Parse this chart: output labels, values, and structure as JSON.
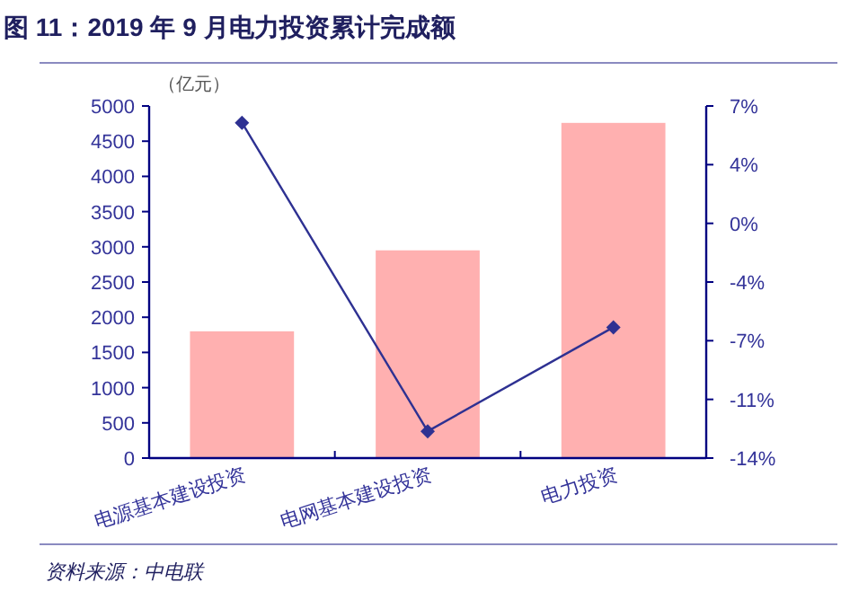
{
  "chart_data": {
    "type": "bar",
    "title": "图 11：2019 年 9 月电力投资累计完成额",
    "ylabel": "（亿元）",
    "categories": [
      "电源基本建设投资",
      "电网基本建设投资",
      "电力投资"
    ],
    "series": [
      {
        "color": "#ffb0b0",
        "values": [
          1800,
          2950,
          4760
        ]
      },
      {
        "type": "line",
        "axis": "y2",
        "color": "#2e3192",
        "marker": "diamond",
        "values": [
          6.0,
          -12.4,
          -6.2
        ]
      }
    ],
    "ylim": [
      0,
      5000
    ],
    "yticks": [
      0,
      500,
      1000,
      1500,
      2000,
      2500,
      3000,
      3500,
      4000,
      4500,
      5000
    ],
    "y2lim": [
      -14,
      7
    ],
    "y2ticks": [
      {
        "value": -14,
        "label": "-14%"
      },
      {
        "value": -10.5,
        "label": "-11%"
      },
      {
        "value": -7,
        "label": "-7%"
      },
      {
        "value": -3.5,
        "label": "-4%"
      },
      {
        "value": 0,
        "label": "0%"
      },
      {
        "value": 3.5,
        "label": "4%"
      },
      {
        "value": 7,
        "label": "7%"
      }
    ],
    "annotations": [
      "资料来源：中电联"
    ]
  }
}
